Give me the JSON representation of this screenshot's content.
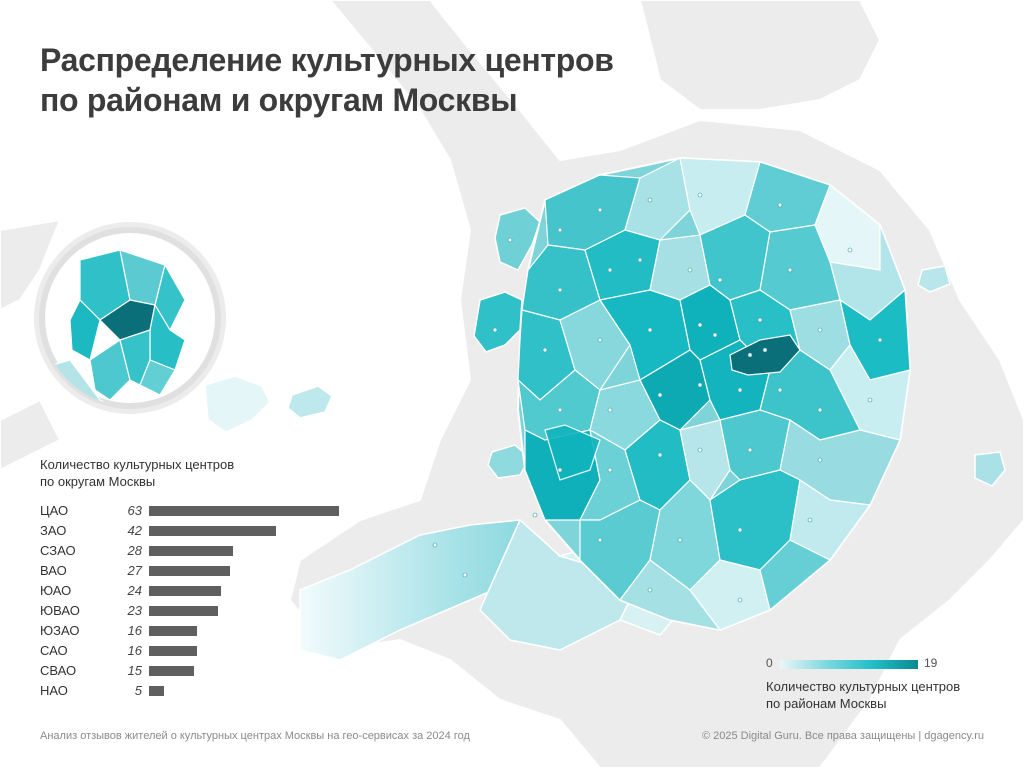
{
  "title_lines": [
    "Распределение культурных центров",
    "по районам и округам Москвы"
  ],
  "okrug_chart": {
    "caption_lines": [
      "Количество культурных центров",
      "по округам Москвы"
    ]
  },
  "chart_data": {
    "type": "bar",
    "orientation": "horizontal",
    "categories": [
      "ЦАО",
      "ЗАО",
      "СЗАО",
      "ВАО",
      "ЮАО",
      "ЮВАО",
      "ЮЗАО",
      "САО",
      "СВАО",
      "НАО"
    ],
    "values": [
      63,
      42,
      28,
      27,
      24,
      23,
      16,
      16,
      15,
      5
    ],
    "bar_color": "#5f5f5f"
  },
  "map": {
    "color_scale": {
      "min_label": "0",
      "max_label": "19",
      "colors": [
        "#eaf7f9",
        "#7fd8df",
        "#22bfc8",
        "#0a8a93"
      ]
    },
    "caption_lines": [
      "Количество культурных центров",
      "по районам Москвы"
    ],
    "background_land_color": "#e9e9e9",
    "highlight_color": "#0a7f88"
  },
  "footer": {
    "left": "Анализ отзывов жителей о культурных центрах Москвы на гео-сервисах за 2024 год",
    "right": "© 2025 Digital Guru. Все права защищены | dgagency.ru"
  }
}
